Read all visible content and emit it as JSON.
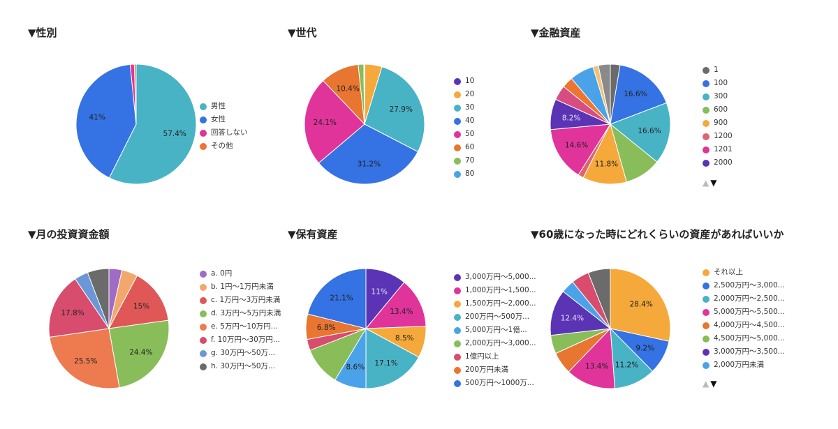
{
  "chart_data": [
    {
      "type": "pie",
      "title": "▼性別",
      "categories": [
        "男性",
        "女性",
        "回答しない",
        "その他"
      ],
      "values": [
        57.4,
        41.0,
        1.1,
        0.5
      ],
      "labels": [
        "57.4%",
        "41%",
        "",
        ""
      ],
      "colors": [
        "#49b3c6",
        "#3572e3",
        "#e0349b",
        "#ee7432"
      ]
    },
    {
      "type": "pie",
      "title": "▼世代",
      "categories": [
        "10",
        "20",
        "30",
        "40",
        "50",
        "60",
        "70",
        "80"
      ],
      "values": [
        0.1,
        4.6,
        27.9,
        31.2,
        24.1,
        10.4,
        1.5,
        0.2
      ],
      "labels": [
        "",
        "",
        "27.9%",
        "31.2%",
        "24.1%",
        "10.4%",
        "",
        ""
      ],
      "colors": [
        "#5b34b5",
        "#f5a93a",
        "#49b3c6",
        "#3572e3",
        "#e0349b",
        "#e87530",
        "#88bd5a",
        "#4aa3e8"
      ]
    },
    {
      "type": "pie",
      "title": "▼金融資産",
      "categories": [
        "1",
        "100",
        "300",
        "600",
        "900",
        "1200",
        "1201",
        "2000"
      ],
      "legend_pager": true,
      "values": [
        2.6,
        16.6,
        16.6,
        9.8,
        11.8,
        1.5,
        14.6,
        8.2,
        4.0,
        3.0,
        6.5,
        1.5,
        3.2
      ],
      "labels": [
        "",
        "16.6%",
        "16.6%",
        "",
        "11.8%",
        "",
        "14.6%",
        "8.2%",
        "",
        "",
        "",
        "",
        ""
      ],
      "colors": [
        "#6b6b6b",
        "#3572e3",
        "#49b3c6",
        "#88bd5a",
        "#f5a93a",
        "#e0646e",
        "#e0349b",
        "#5b34b5",
        "#d84c82",
        "#ee7432",
        "#4aa3e8",
        "#f0c27a",
        "#8a8a8a"
      ]
    },
    {
      "type": "pie",
      "title": "▼月の投資資金額",
      "categories": [
        "a. 0円",
        "b. 1円〜1万円未満",
        "c. 1万円〜3万円未満",
        "d. 3万円〜5万円未満",
        "e. 5万円〜10万円...",
        "f. 10万円〜30万円...",
        "g. 30万円〜50万...",
        "h. 30万円〜50万..."
      ],
      "values": [
        3.5,
        4.3,
        15.0,
        24.4,
        25.5,
        17.8,
        3.7,
        5.8
      ],
      "labels": [
        "",
        "",
        "15%",
        "24.4%",
        "25.5%",
        "17.8%",
        "",
        ""
      ],
      "colors": [
        "#a06bc4",
        "#f2a86c",
        "#e05757",
        "#88bd5a",
        "#ee7a4f",
        "#d84c6e",
        "#6b97d6",
        "#6b6b6b"
      ]
    },
    {
      "type": "pie",
      "title": "▼保有資産",
      "categories": [
        "3,000万円〜5,000...",
        "1,000万円〜1,500...",
        "1,500万円〜2,000...",
        "200万円〜500万...",
        "5,000万円〜1億...",
        "2,000万円〜3,000...",
        "1億円以上",
        "200万円未満",
        "500万円〜1000万..."
      ],
      "values": [
        11.0,
        13.4,
        8.5,
        17.1,
        8.6,
        10.5,
        3.0,
        6.8,
        21.1
      ],
      "labels": [
        "11%",
        "13.4%",
        "8.5%",
        "17.1%",
        "8.6%",
        "",
        "",
        "6.8%",
        "21.1%"
      ],
      "colors": [
        "#5b34b5",
        "#e0349b",
        "#f5a93a",
        "#49b3c6",
        "#4aa3e8",
        "#88bd5a",
        "#d84c6e",
        "#e87530",
        "#3572e3"
      ]
    },
    {
      "type": "pie",
      "title": "▼60歳になった時にどれくらいの資産があればいいか",
      "categories": [
        "それ以上",
        "2,500万円〜3,000...",
        "2,000万円〜2,500...",
        "5,000万円〜5,500...",
        "4,000万円〜4,500...",
        "4,500万円〜5,000...",
        "3,000万円〜3,500...",
        "2,000万円未満"
      ],
      "legend_pager": true,
      "values": [
        28.4,
        9.2,
        11.2,
        13.4,
        6.0,
        5.0,
        12.4,
        3.6,
        4.8,
        6.0
      ],
      "labels": [
        "28.4%",
        "9.2%",
        "11.2%",
        "13.4%",
        "",
        "",
        "12.4%",
        "",
        "",
        ""
      ],
      "colors": [
        "#f5a93a",
        "#3572e3",
        "#49b3c6",
        "#e0349b",
        "#e87530",
        "#88bd5a",
        "#5b34b5",
        "#4aa3e8",
        "#d84c6e",
        "#6b6b6b"
      ]
    }
  ],
  "ui": {
    "page_up_icon": "▲",
    "page_down_icon": "▼"
  }
}
